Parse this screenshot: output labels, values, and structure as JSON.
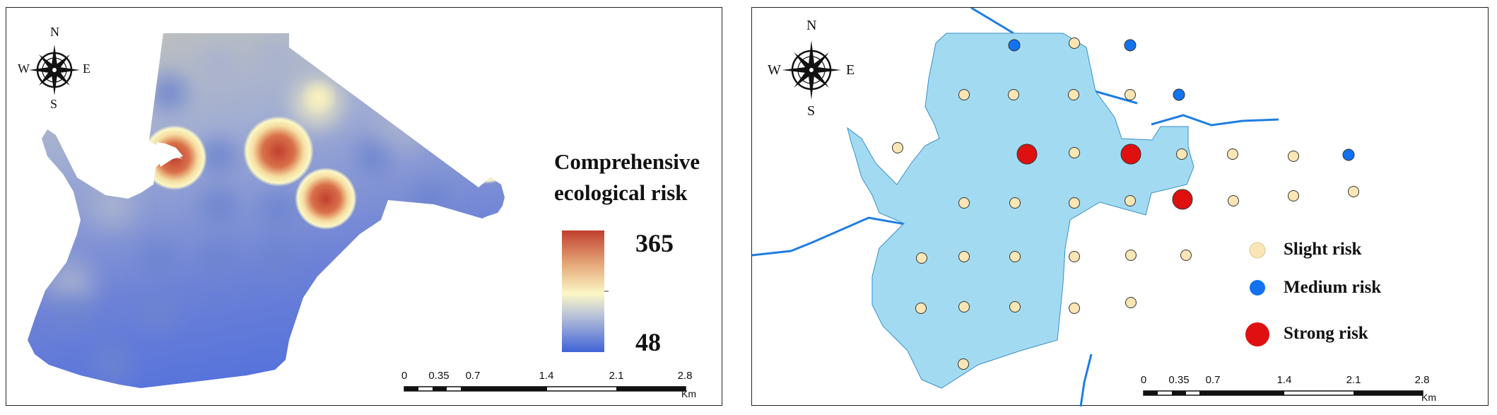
{
  "colors": {
    "ramp_high": "#c0402e",
    "ramp_mid": "#fbf7c6",
    "ramp_low": "#3f63d6",
    "lake_fill": "#a2dbf1",
    "stream": "#1f7de0",
    "slight": "#fae6b4",
    "medium": "#1273f0",
    "strong": "#e01010"
  },
  "left_map": {
    "compass": {
      "icon": "compass-rose-icon",
      "n": "N",
      "s": "S",
      "e": "E",
      "w": "W"
    },
    "legend": {
      "title_line1": "Comprehensive",
      "title_line2": "ecological risk",
      "max_value": "365",
      "min_value": "48"
    },
    "scale_bar": {
      "ticks": [
        "0",
        "0.35",
        "0.7",
        "1.4",
        "2.1",
        "2.8"
      ],
      "unit": "Km"
    }
  },
  "right_map": {
    "compass": {
      "icon": "compass-rose-icon",
      "n": "N",
      "s": "S",
      "e": "E",
      "w": "W"
    },
    "legend": {
      "slight_label": "Slight risk",
      "medium_label": "Medium risk",
      "strong_label": "Strong risk"
    },
    "scale_bar": {
      "ticks": [
        "0",
        "0.35",
        "0.7",
        "1.4",
        "2.1",
        "2.8"
      ],
      "unit": "Km"
    }
  }
}
